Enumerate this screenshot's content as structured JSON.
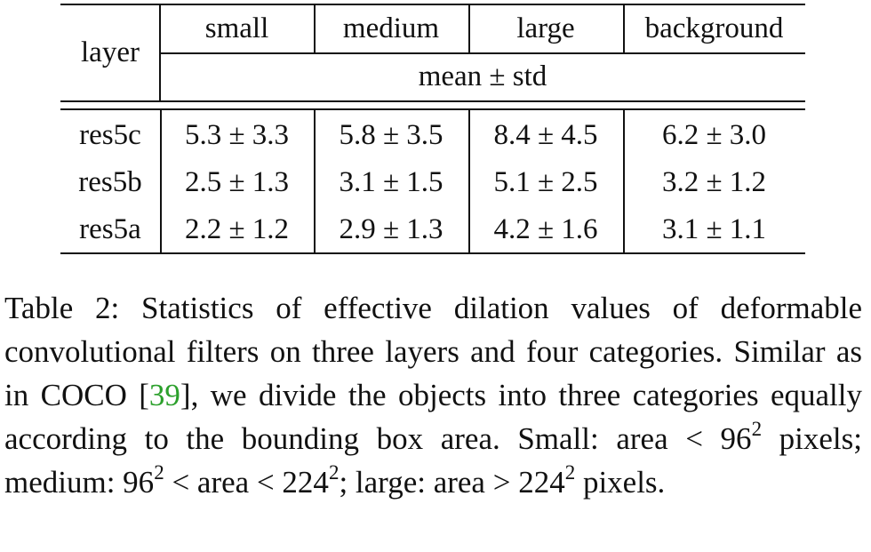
{
  "table": {
    "header": {
      "corner": "layer",
      "columns": [
        "small",
        "medium",
        "large",
        "background"
      ],
      "subheader": "mean ± std"
    },
    "rows": [
      [
        "res5c",
        "5.3 ± 3.3",
        "5.8 ± 3.5",
        "8.4 ± 4.5",
        "6.2 ± 3.0"
      ],
      [
        "res5b",
        "2.5 ± 1.3",
        "3.1 ± 1.5",
        "5.1 ± 2.5",
        "3.2 ± 1.2"
      ],
      [
        "res5a",
        "2.2 ± 1.2",
        "2.9 ± 1.3",
        "4.2 ± 1.6",
        "3.1 ± 1.1"
      ]
    ]
  },
  "caption": {
    "parts": [
      "Table 2: Statistics of effective dilation values of deformable convolutional filters on three layers and four categories. Similar as in COCO [",
      "39",
      "], we divide the objects into three categories equally according to the bounding box area. Small: area < 96",
      "2",
      " pixels; medium: 96",
      "2",
      " < area < 224",
      "2",
      "; large: area > 224",
      "2",
      " pixels."
    ]
  }
}
